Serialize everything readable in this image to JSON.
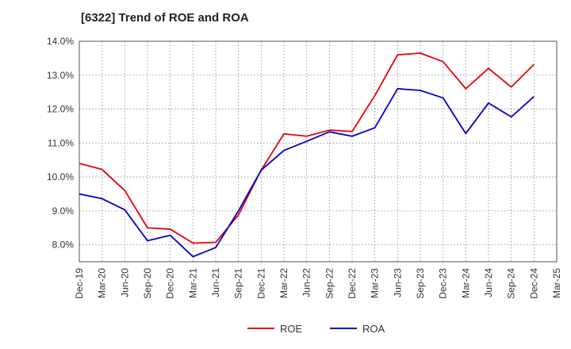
{
  "chart_data": {
    "type": "line",
    "title": "[6322]  Trend of ROE and ROA",
    "xlabel": "",
    "ylabel": "",
    "categories": [
      "Dec-19",
      "Mar-20",
      "Jun-20",
      "Sep-20",
      "Dec-20",
      "Mar-21",
      "Jun-21",
      "Sep-21",
      "Dec-21",
      "Mar-22",
      "Jun-22",
      "Sep-22",
      "Dec-22",
      "Mar-23",
      "Jun-23",
      "Sep-23",
      "Dec-23",
      "Mar-24",
      "Jun-24",
      "Sep-24",
      "Dec-24",
      "Mar-25"
    ],
    "ylim": [
      7.5,
      14.0
    ],
    "yticks": [
      8.0,
      9.0,
      10.0,
      11.0,
      12.0,
      13.0,
      14.0
    ],
    "ytick_labels": [
      "8.0%",
      "9.0%",
      "10.0%",
      "11.0%",
      "12.0%",
      "13.0%",
      "14.0%"
    ],
    "grid": true,
    "legend_position": "bottom-center",
    "series": [
      {
        "name": "ROE",
        "color": "#e8000b",
        "values": [
          10.4,
          10.22,
          9.6,
          8.5,
          8.46,
          8.05,
          8.07,
          8.88,
          10.2,
          11.27,
          11.2,
          11.38,
          11.34,
          12.4,
          13.6,
          13.65,
          13.4,
          12.6,
          13.2,
          12.65,
          13.32,
          null
        ]
      },
      {
        "name": "ROA",
        "color": "#0000cc",
        "values": [
          9.5,
          9.36,
          9.03,
          8.12,
          8.28,
          7.65,
          7.92,
          9.0,
          10.2,
          10.78,
          11.05,
          11.33,
          11.2,
          11.45,
          12.6,
          12.55,
          12.33,
          11.28,
          12.18,
          11.77,
          12.37,
          null
        ]
      }
    ]
  }
}
